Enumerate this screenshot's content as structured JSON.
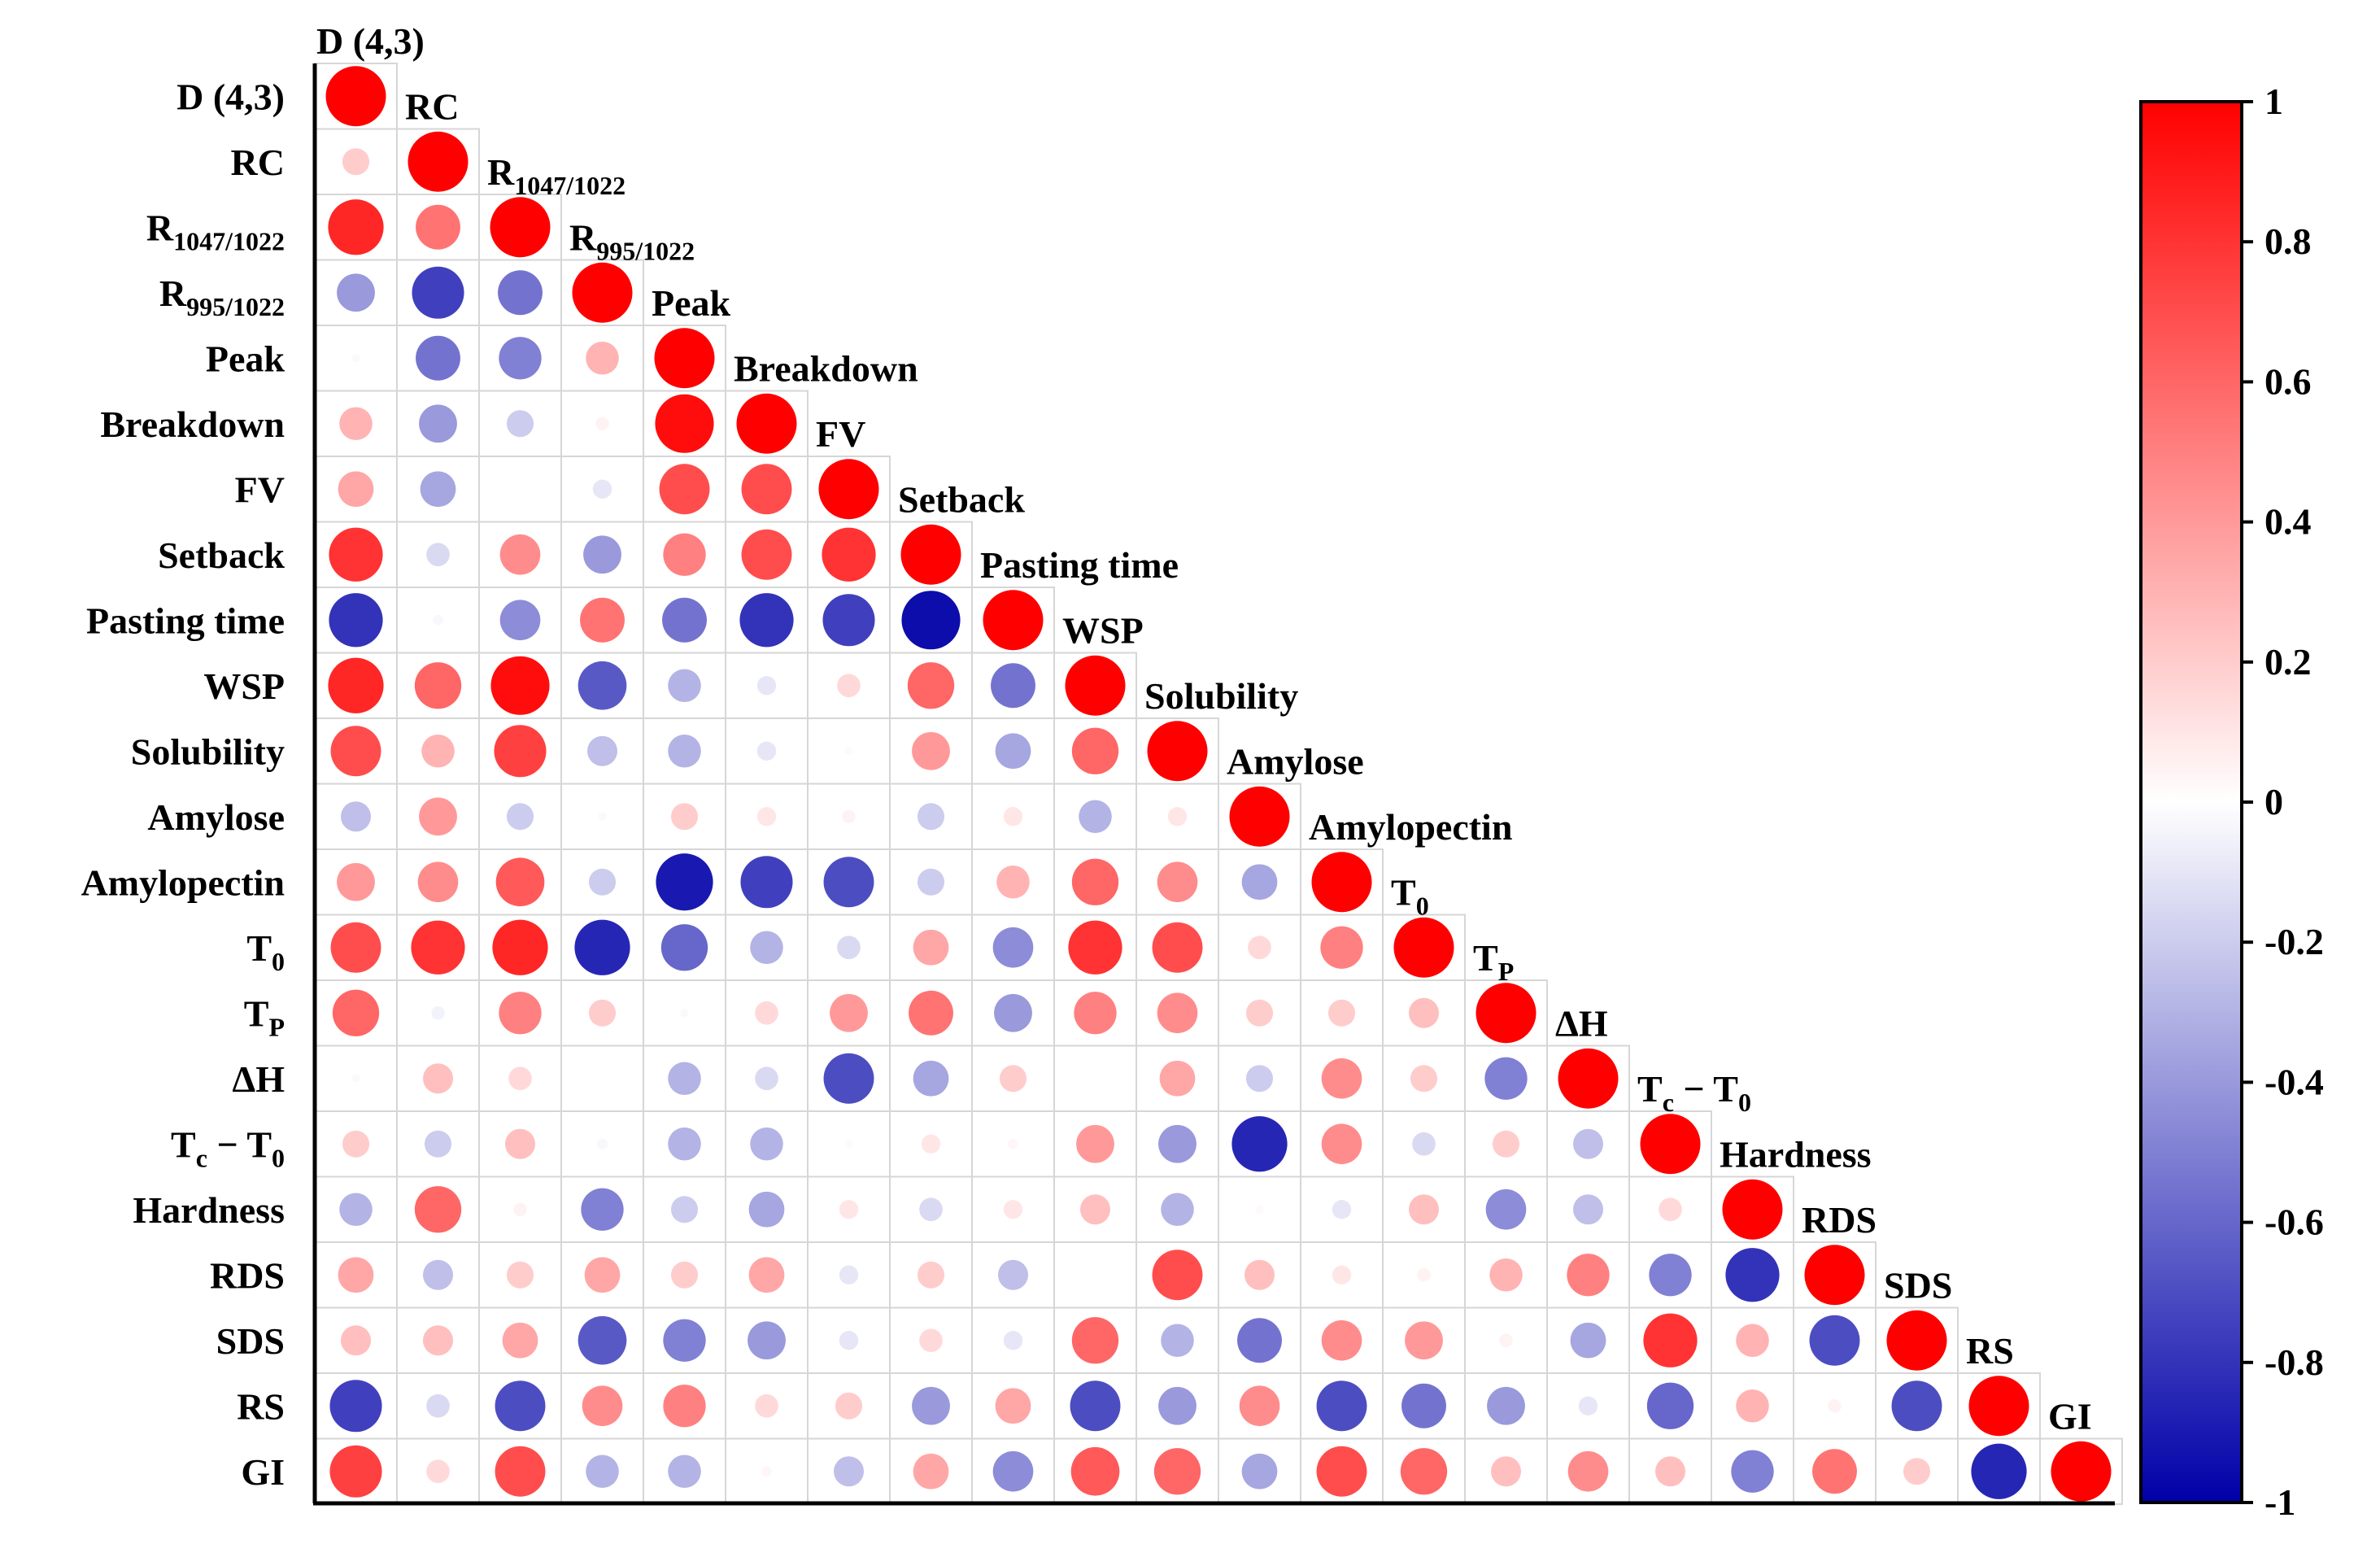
{
  "chart_data": {
    "type": "heatmap",
    "subtype": "lower-triangular correlation matrix (circle size and color encode r)",
    "variables": [
      [
        "D (4,3)",
        ""
      ],
      [
        "RC",
        ""
      ],
      [
        "R",
        "1047/1022"
      ],
      [
        "R",
        "995/1022"
      ],
      [
        "Peak",
        ""
      ],
      [
        "Breakdown",
        ""
      ],
      [
        "FV",
        ""
      ],
      [
        "Setback",
        ""
      ],
      [
        "Pasting time",
        ""
      ],
      [
        "WSP",
        ""
      ],
      [
        "Solubility",
        ""
      ],
      [
        "Amylose",
        ""
      ],
      [
        "Amylopectin",
        ""
      ],
      [
        "T",
        "0"
      ],
      [
        "T",
        "P"
      ],
      [
        "ΔH",
        ""
      ],
      [
        "T",
        "c",
        " − T",
        "0"
      ],
      [
        "Hardness",
        ""
      ],
      [
        "RDS",
        ""
      ],
      [
        "SDS",
        ""
      ],
      [
        "RS",
        ""
      ],
      [
        "GI",
        ""
      ]
    ],
    "matrix_lower": [
      [
        1
      ],
      [
        0.2,
        1
      ],
      [
        0.85,
        0.55,
        1
      ],
      [
        -0.4,
        -0.75,
        -0.55,
        1
      ],
      [
        -0.02,
        -0.55,
        -0.5,
        0.3,
        1
      ],
      [
        0.3,
        -0.4,
        -0.2,
        0.05,
        0.95,
        1
      ],
      [
        0.35,
        -0.35,
        0,
        -0.1,
        0.7,
        0.7,
        1
      ],
      [
        0.8,
        -0.15,
        0.45,
        -0.4,
        0.5,
        0.7,
        0.8,
        1
      ],
      [
        -0.8,
        -0.03,
        -0.45,
        0.55,
        -0.55,
        -0.8,
        -0.75,
        -0.95,
        1
      ],
      [
        0.85,
        0.6,
        0.95,
        -0.65,
        -0.3,
        -0.1,
        0.15,
        0.6,
        -0.55,
        1
      ],
      [
        0.7,
        0.3,
        0.75,
        -0.25,
        -0.3,
        -0.1,
        0.02,
        0.4,
        -0.35,
        0.6,
        1
      ],
      [
        -0.25,
        0.4,
        -0.2,
        -0.02,
        0.2,
        0.1,
        0.05,
        -0.2,
        0.1,
        -0.3,
        0.1,
        1
      ],
      [
        0.4,
        0.45,
        0.65,
        -0.2,
        -0.9,
        -0.75,
        -0.7,
        -0.2,
        0.3,
        0.6,
        0.45,
        -0.35,
        1
      ],
      [
        0.7,
        0.8,
        0.85,
        -0.85,
        -0.6,
        -0.3,
        -0.15,
        0.35,
        -0.45,
        0.8,
        0.7,
        0.15,
        0.5,
        1
      ],
      [
        0.6,
        -0.05,
        0.5,
        0.2,
        -0.02,
        0.15,
        0.4,
        0.55,
        -0.4,
        0.5,
        0.45,
        0.2,
        0.2,
        0.25,
        1
      ],
      [
        -0.02,
        0.25,
        0.15,
        0,
        -0.3,
        -0.15,
        -0.7,
        -0.35,
        0.2,
        0,
        0.35,
        -0.2,
        0.45,
        0.2,
        -0.5,
        1
      ],
      [
        0.2,
        -0.2,
        0.25,
        -0.03,
        -0.3,
        -0.3,
        0.02,
        0.1,
        0.03,
        0.4,
        -0.4,
        -0.85,
        0.45,
        -0.15,
        0.2,
        -0.25,
        1
      ],
      [
        -0.3,
        0.6,
        0.05,
        -0.5,
        -0.2,
        -0.35,
        0.1,
        -0.15,
        0.1,
        0.25,
        -0.3,
        0.02,
        -0.1,
        0.25,
        -0.45,
        -0.25,
        0.15,
        1
      ],
      [
        0.35,
        -0.25,
        0.2,
        0.35,
        0.2,
        0.35,
        -0.1,
        0.2,
        -0.25,
        0,
        0.7,
        0.25,
        0.1,
        0.05,
        0.3,
        0.5,
        -0.5,
        -0.8,
        1
      ],
      [
        0.25,
        0.25,
        0.35,
        -0.65,
        -0.5,
        -0.4,
        -0.1,
        0.15,
        -0.1,
        0.6,
        -0.3,
        -0.55,
        0.45,
        0.4,
        0.05,
        -0.35,
        0.8,
        0.3,
        -0.7,
        1
      ],
      [
        -0.75,
        -0.15,
        -0.7,
        0.45,
        0.5,
        0.15,
        0.2,
        -0.4,
        0.35,
        -0.7,
        -0.4,
        0.45,
        -0.7,
        -0.55,
        -0.4,
        -0.1,
        -0.6,
        0.3,
        0.05,
        -0.7,
        1
      ],
      [
        0.75,
        0.15,
        0.7,
        -0.3,
        -0.3,
        0.03,
        -0.25,
        0.35,
        -0.45,
        0.65,
        0.6,
        -0.35,
        0.7,
        0.6,
        0.25,
        0.45,
        0.25,
        -0.5,
        0.55,
        0.2,
        -0.85,
        1
      ]
    ],
    "colorbar": {
      "range": [
        -1,
        1
      ],
      "ticks": [
        1,
        0.8,
        0.6,
        0.4,
        0.2,
        0,
        -0.2,
        -0.4,
        -0.6,
        -0.8,
        -1
      ],
      "tick_labels": [
        "1",
        "0.8",
        "0.6",
        "0.4",
        "0.2",
        "0",
        "-0.2",
        "-0.4",
        "-0.6",
        "-0.8",
        "-1"
      ],
      "color_low": "#0000a8",
      "color_mid": "#ffffff",
      "color_high": "#ff0000"
    },
    "title": "",
    "xlabel": "",
    "ylabel": "",
    "legend": "right"
  }
}
